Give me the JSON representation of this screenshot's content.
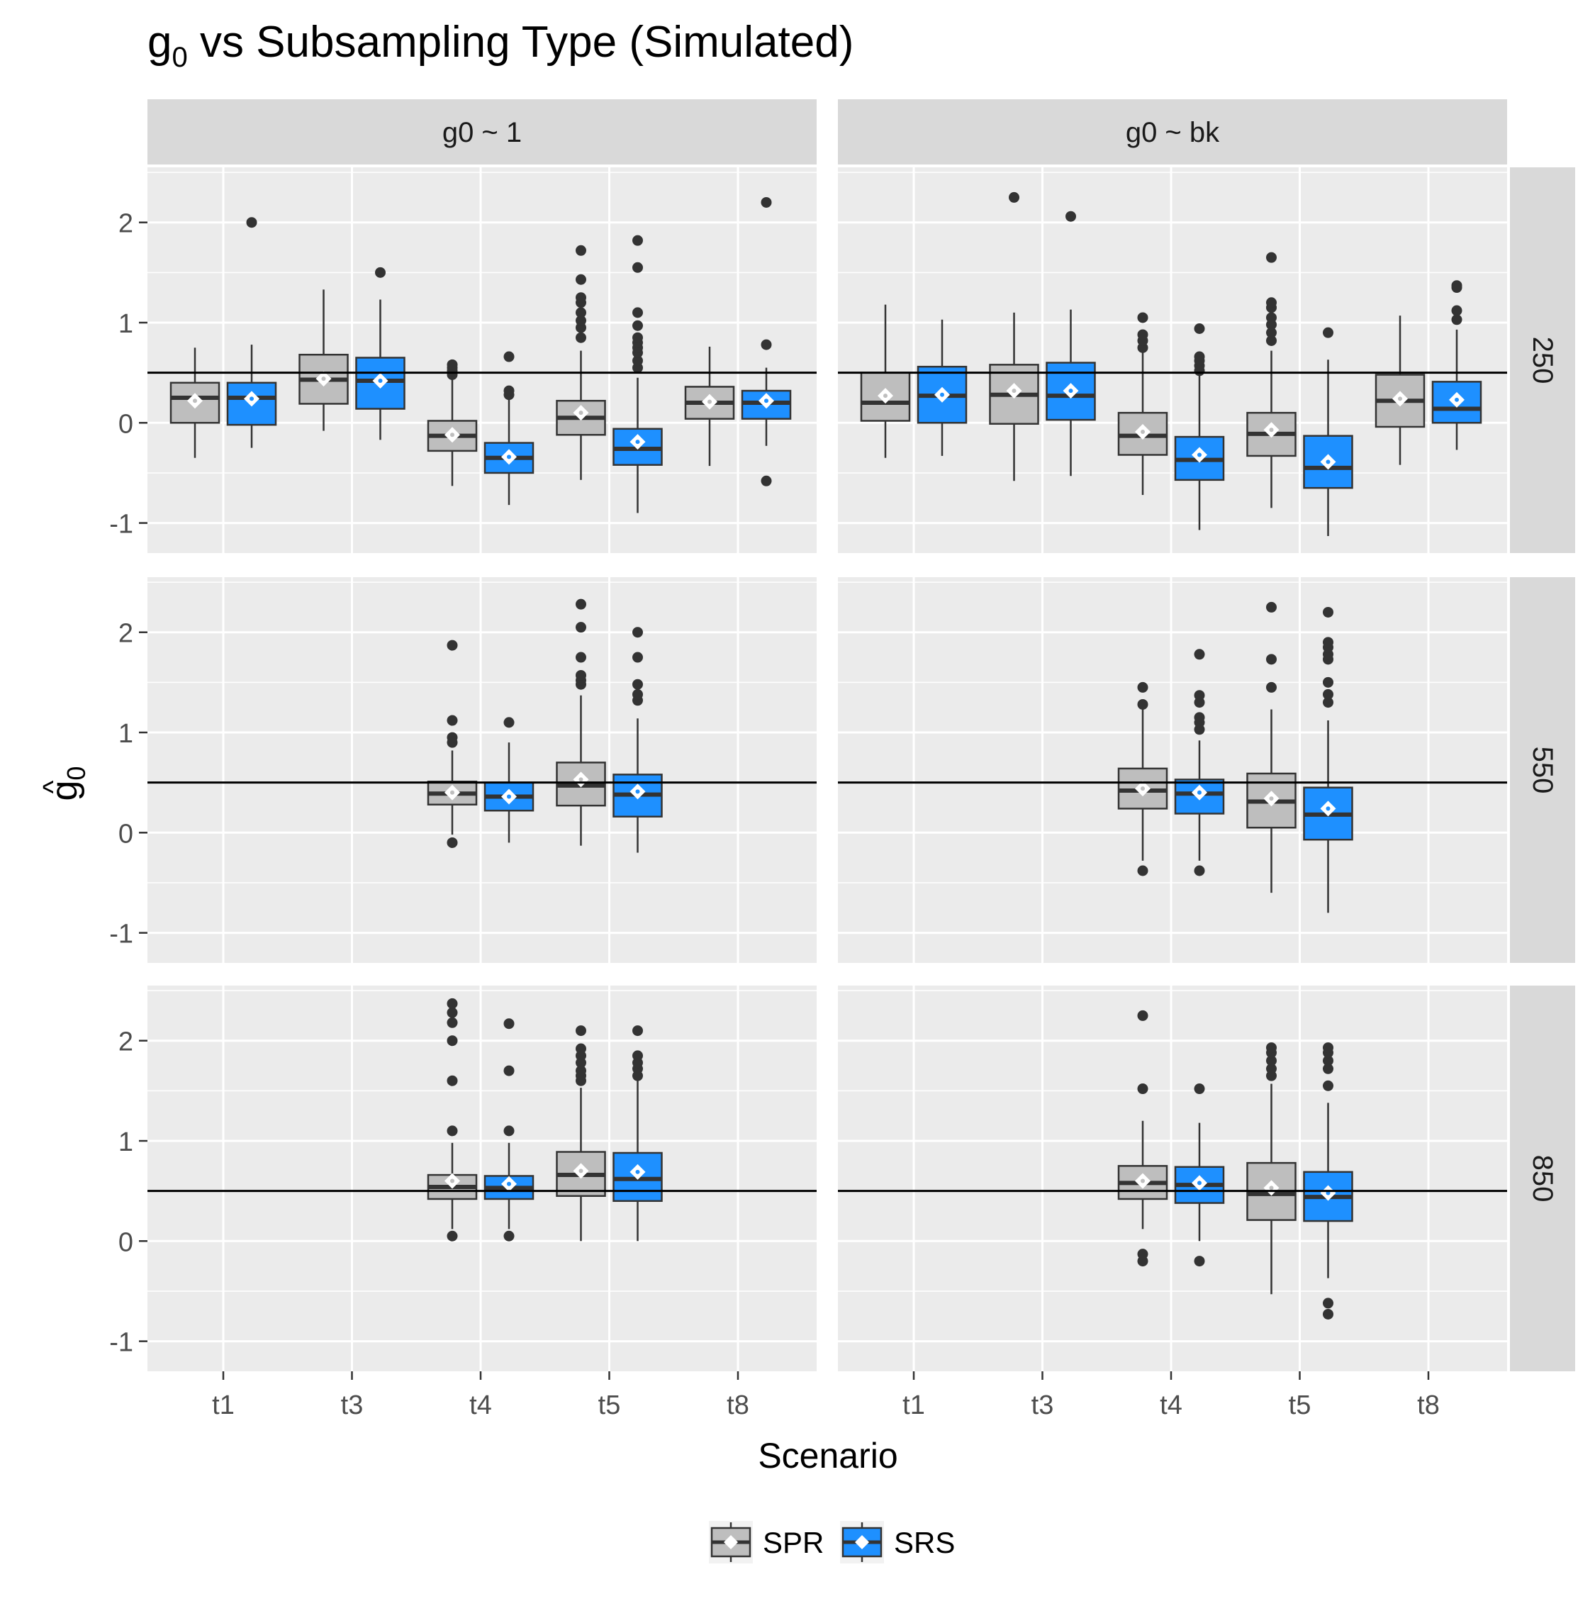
{
  "chart_data": {
    "type": "boxplot",
    "title": {
      "base": "g",
      "sub": "0",
      "rest": " vs Subsampling Type (Simulated)"
    },
    "xlabel": "Scenario",
    "ylabel": {
      "base": "g",
      "sub": "0",
      "hat": "^"
    },
    "categories": [
      "t1",
      "t3",
      "t4",
      "t5",
      "t8"
    ],
    "ylim": [
      -1.3,
      2.55
    ],
    "yticks": [
      -1,
      0,
      1,
      2
    ],
    "reference_line": 0.5,
    "col_facets": [
      "g0 ~ 1",
      "g0 ~ bk"
    ],
    "row_facets": [
      "250",
      "550",
      "850"
    ],
    "legend": {
      "position": "bottom",
      "entries": [
        {
          "name": "SPR",
          "color": "#bebebe"
        },
        {
          "name": "SRS",
          "color": "#1e90ff"
        }
      ]
    },
    "colors": {
      "panel_bg": "#ebebeb",
      "strip_bg": "#d9d9d9",
      "grid": "#ffffff",
      "box_line": "#333333",
      "mean_marker": "#ffffff"
    },
    "panels": [
      {
        "row": "250",
        "col": "g0 ~ 1",
        "boxes": [
          {
            "x": "t1",
            "group": "SPR",
            "lo": -0.35,
            "q1": 0.0,
            "med": 0.25,
            "q3": 0.4,
            "hi": 0.75,
            "mean": 0.22,
            "out": []
          },
          {
            "x": "t1",
            "group": "SRS",
            "lo": -0.25,
            "q1": -0.02,
            "med": 0.25,
            "q3": 0.4,
            "hi": 0.78,
            "mean": 0.24,
            "out": [
              2.0
            ]
          },
          {
            "x": "t3",
            "group": "SPR",
            "lo": -0.08,
            "q1": 0.19,
            "med": 0.43,
            "q3": 0.68,
            "hi": 1.33,
            "mean": 0.44,
            "out": []
          },
          {
            "x": "t3",
            "group": "SRS",
            "lo": -0.17,
            "q1": 0.14,
            "med": 0.42,
            "q3": 0.65,
            "hi": 1.23,
            "mean": 0.42,
            "out": [
              1.5
            ]
          },
          {
            "x": "t4",
            "group": "SPR",
            "lo": -0.63,
            "q1": -0.28,
            "med": -0.13,
            "q3": 0.02,
            "hi": 0.45,
            "mean": -0.12,
            "out": [
              0.48,
              0.52,
              0.55,
              0.58
            ]
          },
          {
            "x": "t4",
            "group": "SRS",
            "lo": -0.82,
            "q1": -0.5,
            "med": -0.35,
            "q3": -0.2,
            "hi": 0.23,
            "mean": -0.34,
            "out": [
              0.28,
              0.32,
              0.66
            ]
          },
          {
            "x": "t5",
            "group": "SPR",
            "lo": -0.57,
            "q1": -0.12,
            "med": 0.05,
            "q3": 0.22,
            "hi": 0.72,
            "mean": 0.1,
            "out": [
              0.85,
              0.95,
              1.02,
              1.1,
              1.2,
              1.25,
              1.43,
              1.72
            ]
          },
          {
            "x": "t5",
            "group": "SRS",
            "lo": -0.9,
            "q1": -0.42,
            "med": -0.26,
            "q3": -0.06,
            "hi": 0.45,
            "mean": -0.19,
            "out": [
              0.55,
              0.62,
              0.7,
              0.75,
              0.8,
              0.85,
              0.97,
              1.1,
              1.55,
              1.82
            ]
          },
          {
            "x": "t8",
            "group": "SPR",
            "lo": -0.43,
            "q1": 0.04,
            "med": 0.2,
            "q3": 0.36,
            "hi": 0.76,
            "mean": 0.21,
            "out": []
          },
          {
            "x": "t8",
            "group": "SRS",
            "lo": -0.23,
            "q1": 0.04,
            "med": 0.2,
            "q3": 0.32,
            "hi": 0.55,
            "mean": 0.22,
            "out": [
              -0.58,
              0.78,
              2.2
            ]
          }
        ]
      },
      {
        "row": "250",
        "col": "g0 ~ bk",
        "boxes": [
          {
            "x": "t1",
            "group": "SPR",
            "lo": -0.35,
            "q1": 0.02,
            "med": 0.2,
            "q3": 0.5,
            "hi": 1.18,
            "mean": 0.27,
            "out": []
          },
          {
            "x": "t1",
            "group": "SRS",
            "lo": -0.33,
            "q1": 0.0,
            "med": 0.27,
            "q3": 0.56,
            "hi": 1.03,
            "mean": 0.28,
            "out": []
          },
          {
            "x": "t3",
            "group": "SPR",
            "lo": -0.58,
            "q1": -0.01,
            "med": 0.28,
            "q3": 0.58,
            "hi": 1.1,
            "mean": 0.32,
            "out": [
              2.25
            ]
          },
          {
            "x": "t3",
            "group": "SRS",
            "lo": -0.53,
            "q1": 0.03,
            "med": 0.27,
            "q3": 0.6,
            "hi": 1.13,
            "mean": 0.32,
            "out": [
              2.06
            ]
          },
          {
            "x": "t4",
            "group": "SPR",
            "lo": -0.72,
            "q1": -0.32,
            "med": -0.13,
            "q3": 0.1,
            "hi": 0.7,
            "mean": -0.09,
            "out": [
              0.75,
              0.82,
              0.88,
              1.05
            ]
          },
          {
            "x": "t4",
            "group": "SRS",
            "lo": -1.07,
            "q1": -0.57,
            "med": -0.37,
            "q3": -0.14,
            "hi": 0.48,
            "mean": -0.32,
            "out": [
              0.52,
              0.57,
              0.62,
              0.66,
              0.94
            ]
          },
          {
            "x": "t5",
            "group": "SPR",
            "lo": -0.85,
            "q1": -0.33,
            "med": -0.11,
            "q3": 0.1,
            "hi": 0.72,
            "mean": -0.07,
            "out": [
              0.82,
              0.9,
              0.98,
              1.05,
              1.15,
              1.2,
              1.65
            ]
          },
          {
            "x": "t5",
            "group": "SRS",
            "lo": -1.13,
            "q1": -0.65,
            "med": -0.45,
            "q3": -0.13,
            "hi": 0.63,
            "mean": -0.39,
            "out": [
              0.9
            ]
          },
          {
            "x": "t8",
            "group": "SPR",
            "lo": -0.42,
            "q1": -0.04,
            "med": 0.22,
            "q3": 0.48,
            "hi": 1.07,
            "mean": 0.24,
            "out": []
          },
          {
            "x": "t8",
            "group": "SRS",
            "lo": -0.27,
            "q1": 0.0,
            "med": 0.14,
            "q3": 0.41,
            "hi": 0.93,
            "mean": 0.23,
            "out": [
              1.03,
              1.12,
              1.35,
              1.37
            ]
          }
        ]
      },
      {
        "row": "550",
        "col": "g0 ~ 1",
        "boxes": [
          {
            "x": "t4",
            "group": "SPR",
            "lo": -0.02,
            "q1": 0.28,
            "med": 0.39,
            "q3": 0.51,
            "hi": 0.82,
            "mean": 0.4,
            "out": [
              -0.1,
              0.9,
              0.95,
              1.12,
              1.87
            ]
          },
          {
            "x": "t4",
            "group": "SRS",
            "lo": -0.1,
            "q1": 0.22,
            "med": 0.36,
            "q3": 0.5,
            "hi": 0.9,
            "mean": 0.36,
            "out": [
              1.1
            ]
          },
          {
            "x": "t5",
            "group": "SPR",
            "lo": -0.13,
            "q1": 0.27,
            "med": 0.47,
            "q3": 0.7,
            "hi": 1.37,
            "mean": 0.53,
            "out": [
              1.48,
              1.52,
              1.57,
              1.75,
              2.05,
              2.28
            ]
          },
          {
            "x": "t5",
            "group": "SRS",
            "lo": -0.2,
            "q1": 0.16,
            "med": 0.38,
            "q3": 0.58,
            "hi": 1.14,
            "mean": 0.41,
            "out": [
              1.32,
              1.38,
              1.48,
              1.75,
              2.0
            ]
          }
        ]
      },
      {
        "row": "550",
        "col": "g0 ~ bk",
        "boxes": [
          {
            "x": "t4",
            "group": "SPR",
            "lo": -0.28,
            "q1": 0.24,
            "med": 0.42,
            "q3": 0.64,
            "hi": 1.25,
            "mean": 0.44,
            "out": [
              -0.38,
              1.28,
              1.45
            ]
          },
          {
            "x": "t4",
            "group": "SRS",
            "lo": -0.28,
            "q1": 0.19,
            "med": 0.39,
            "q3": 0.53,
            "hi": 0.92,
            "mean": 0.4,
            "out": [
              -0.38,
              1.03,
              1.1,
              1.15,
              1.3,
              1.37,
              1.78
            ]
          },
          {
            "x": "t5",
            "group": "SPR",
            "lo": -0.6,
            "q1": 0.05,
            "med": 0.31,
            "q3": 0.59,
            "hi": 1.23,
            "mean": 0.34,
            "out": [
              1.45,
              1.73,
              2.25
            ]
          },
          {
            "x": "t5",
            "group": "SRS",
            "lo": -0.8,
            "q1": -0.07,
            "med": 0.18,
            "q3": 0.45,
            "hi": 1.12,
            "mean": 0.24,
            "out": [
              1.3,
              1.38,
              1.5,
              1.73,
              1.78,
              1.85,
              1.9,
              2.2
            ]
          }
        ]
      },
      {
        "row": "850",
        "col": "g0 ~ 1",
        "boxes": [
          {
            "x": "t4",
            "group": "SPR",
            "lo": 0.12,
            "q1": 0.42,
            "med": 0.54,
            "q3": 0.66,
            "hi": 0.98,
            "mean": 0.6,
            "out": [
              0.05,
              1.1,
              1.6,
              2.0,
              2.18,
              2.28,
              2.37
            ]
          },
          {
            "x": "t4",
            "group": "SRS",
            "lo": 0.12,
            "q1": 0.42,
            "med": 0.53,
            "q3": 0.65,
            "hi": 0.98,
            "mean": 0.57,
            "out": [
              0.05,
              1.1,
              1.7,
              2.17
            ]
          },
          {
            "x": "t5",
            "group": "SPR",
            "lo": 0.0,
            "q1": 0.45,
            "med": 0.66,
            "q3": 0.89,
            "hi": 1.53,
            "mean": 0.7,
            "out": [
              1.6,
              1.65,
              1.7,
              1.78,
              1.85,
              1.92,
              2.1
            ]
          },
          {
            "x": "t5",
            "group": "SRS",
            "lo": 0.0,
            "q1": 0.4,
            "med": 0.62,
            "q3": 0.88,
            "hi": 1.6,
            "mean": 0.69,
            "out": [
              1.65,
              1.72,
              1.78,
              1.85,
              2.1
            ]
          }
        ]
      },
      {
        "row": "850",
        "col": "g0 ~ bk",
        "boxes": [
          {
            "x": "t4",
            "group": "SPR",
            "lo": 0.12,
            "q1": 0.42,
            "med": 0.58,
            "q3": 0.75,
            "hi": 1.2,
            "mean": 0.6,
            "out": [
              -0.2,
              -0.13,
              1.52,
              2.25
            ]
          },
          {
            "x": "t4",
            "group": "SRS",
            "lo": 0.0,
            "q1": 0.38,
            "med": 0.56,
            "q3": 0.74,
            "hi": 1.18,
            "mean": 0.58,
            "out": [
              -0.2,
              1.52
            ]
          },
          {
            "x": "t5",
            "group": "SPR",
            "lo": -0.53,
            "q1": 0.21,
            "med": 0.47,
            "q3": 0.78,
            "hi": 1.57,
            "mean": 0.53,
            "out": [
              1.65,
              1.72,
              1.8,
              1.88,
              1.93
            ]
          },
          {
            "x": "t5",
            "group": "SRS",
            "lo": -0.37,
            "q1": 0.2,
            "med": 0.44,
            "q3": 0.69,
            "hi": 1.38,
            "mean": 0.48,
            "out": [
              -0.73,
              -0.62,
              1.55,
              1.72,
              1.8,
              1.88,
              1.93
            ]
          }
        ]
      }
    ]
  }
}
